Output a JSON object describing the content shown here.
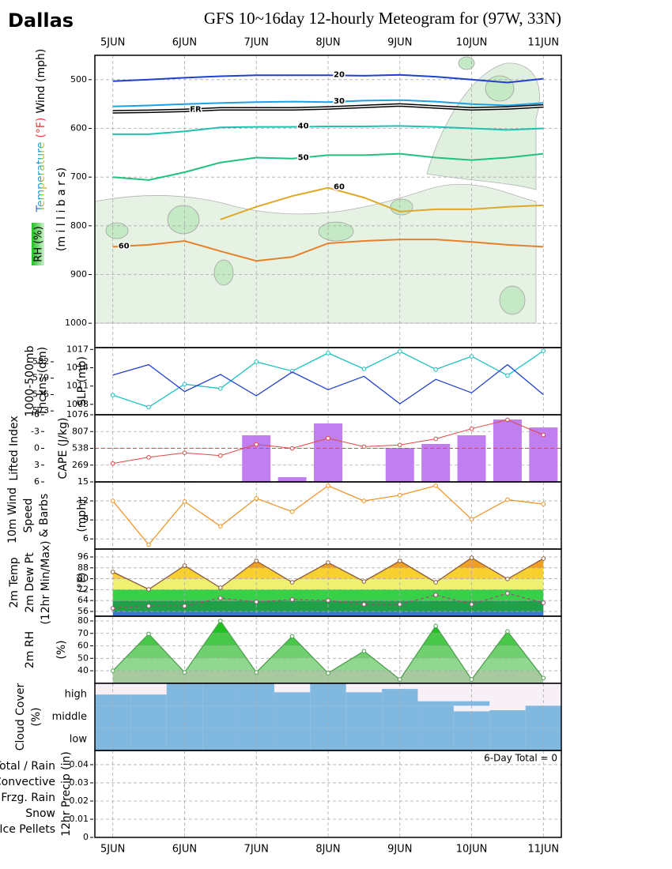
{
  "header": {
    "location": "Dallas",
    "title": "GFS 10~16day 12-hourly Meteogram for (97W, 33N)"
  },
  "x_axis": {
    "categories": [
      "5JUN",
      null,
      "6JUN",
      null,
      "7JUN",
      null,
      "8JUN",
      null,
      "9JUN",
      null,
      "10JUN",
      null,
      "11JUN"
    ],
    "xlim": [
      -0.5,
      12.5
    ]
  },
  "chart_data": [
    {
      "type": "contour",
      "temperature_label": "Temperature",
      "temperature_unit": "(°F)",
      "wind_label": "Wind (mph)",
      "ylabel": "(m i l l i b a r s)",
      "rh_label": "RH (%)",
      "ylim": [
        1050,
        450
      ],
      "yticks": [
        500,
        600,
        700,
        800,
        900,
        1000
      ],
      "grid": true,
      "series": [
        {
          "name": "20",
          "color": "#2040d0",
          "values": [
            503,
            500,
            496,
            493,
            491,
            491,
            491,
            492,
            490,
            494,
            500,
            506,
            498
          ]
        },
        {
          "name": "30",
          "color": "#1ea0e6",
          "values": [
            555,
            553,
            550,
            548,
            546,
            545,
            546,
            543,
            542,
            545,
            550,
            553,
            548
          ]
        },
        {
          "name": "FR",
          "color": "#000000",
          "style": "double",
          "values": [
            566,
            565,
            563,
            560,
            560,
            560,
            558,
            555,
            552,
            556,
            560,
            558,
            554
          ]
        },
        {
          "name": "40",
          "color": "#20c0b0",
          "values": [
            612,
            612,
            606,
            598,
            597,
            597,
            596,
            596,
            595,
            597,
            600,
            603,
            600
          ]
        },
        {
          "name": "50",
          "color": "#20c080",
          "values": [
            700,
            706,
            690,
            670,
            660,
            662,
            655,
            655,
            652,
            660,
            665,
            660,
            652
          ]
        },
        {
          "name": "60",
          "color": "#e0a828",
          "values": [
            null,
            null,
            null,
            787,
            761,
            739,
            722,
            742,
            771,
            766,
            766,
            761,
            758
          ]
        },
        {
          "name": "60",
          "color": "#e8802a",
          "values": [
            843,
            839,
            831,
            852,
            872,
            864,
            836,
            831,
            828,
            828,
            833,
            839,
            843
          ]
        }
      ]
    },
    {
      "type": "dual_line",
      "ylabel": [
        "1000-500mb",
        "Thckns (dm)"
      ],
      "y2label": "SLP (mb)",
      "ylim": [
        572.3,
        584.6
      ],
      "yticks": [
        573,
        576,
        579,
        582
      ],
      "y2lim": [
        1006.3,
        1017.3
      ],
      "y2ticks": [
        1008,
        1011,
        1014,
        1017
      ],
      "grid": false,
      "series": [
        {
          "color": "#20c0c0",
          "values": [
            575.9,
            573.7,
            577.9,
            577.1,
            582.0,
            580.3,
            583.6,
            580.7,
            583.9,
            580.6,
            583.0,
            579.5,
            584.0
          ]
        },
        {
          "color": "#2040d0",
          "axis": "y2",
          "values": [
            1012.8,
            1014.5,
            1010.1,
            1012.9,
            1009.4,
            1013.3,
            1010.4,
            1012.6,
            1008.1,
            1012.1,
            1009.9,
            1014.5,
            1009.6
          ]
        }
      ]
    },
    {
      "type": "bar_line",
      "ylabel": "Lifted Index",
      "y2label": "CAPE (J/kg)",
      "ylim": [
        6,
        -6
      ],
      "yticks": [
        -6,
        -3,
        0,
        3,
        6
      ],
      "y2lim": [
        0,
        1076
      ],
      "y2ticks": [
        269,
        538,
        807,
        1076
      ],
      "grid": true,
      "series": [
        {
          "color": "#e04848",
          "values": [
            2.7,
            1.6,
            0.8,
            1.3,
            -0.7,
            0,
            -1.8,
            -0.3,
            -0.6,
            -1.7,
            -3.5,
            -5.1,
            -2.4
          ]
        },
        {
          "color": "#c07ef0",
          "axis": "y2",
          "values": [
            0,
            0,
            10,
            0,
            747,
            76,
            937,
            0,
            544,
            608,
            747,
            1000,
            873
          ]
        }
      ]
    },
    {
      "type": "line",
      "ylabel": [
        "10m Wind",
        "Speed",
        "& Barbs"
      ],
      "ylabel_colors": [
        "#f09020",
        "#f09020",
        "#a06040"
      ],
      "unit": "(mph)",
      "ylim": [
        4.4,
        15
      ],
      "yticks": [
        6,
        9,
        12,
        15
      ],
      "grid": true,
      "series": [
        {
          "color": "#f09020",
          "values": [
            12.0,
            5.1,
            11.9,
            8.0,
            12.4,
            10.3,
            14.4,
            12.0,
            12.9,
            14.4,
            9.1,
            12.2,
            11.5
          ]
        }
      ]
    },
    {
      "type": "band_area",
      "ylabel": [
        "2m Temp",
        "2m Dew Pt",
        "(12hr Min/Max)"
      ],
      "ylabel_colors": [
        "#8b4a3c",
        "#8b4a3c",
        "#8b4a3c"
      ],
      "unit": "(°F)",
      "ylim": [
        52.5,
        101.8
      ],
      "yticks": [
        56,
        64,
        72,
        80,
        88,
        96
      ],
      "grid": true,
      "band_colors": [
        "#3a78d8",
        "#20a048",
        "#38d048",
        "#eef070",
        "#f8d030",
        "#f0a020",
        "#e06010"
      ],
      "series": [
        {
          "color": "#8b5a3c",
          "values": [
            85.0,
            72.2,
            89.6,
            73.4,
            93.1,
            77.4,
            91.9,
            78.0,
            93.1,
            77.4,
            95.4,
            79.8,
            94.8
          ]
        },
        {
          "color": "#a05070",
          "style": "dashed",
          "values": [
            58.3,
            60.0,
            60.0,
            65.8,
            63.0,
            64.7,
            64.1,
            61.2,
            61.2,
            68.1,
            61.2,
            69.3,
            62.3
          ]
        }
      ]
    },
    {
      "type": "band_area",
      "ylabel": [
        "2m RH"
      ],
      "ylabel_colors": [
        "#60c060"
      ],
      "unit": "(%)",
      "ylim": [
        29.9,
        83.8
      ],
      "yticks": [
        40,
        50,
        60,
        70,
        80
      ],
      "grid": true,
      "band_colors": [
        "#a8c8a0",
        "#90d890",
        "#70d070",
        "#48c848",
        "#20c020",
        "#10b010"
      ],
      "series": [
        {
          "color": "#50a050",
          "values": [
            40,
            69.6,
            38.7,
            80,
            38.7,
            67.7,
            38.1,
            55.8,
            33,
            76,
            33,
            71.6,
            34.2
          ]
        }
      ]
    },
    {
      "type": "cloud",
      "ylabel": [
        "Cloud Cover"
      ],
      "ylabel_colors": [
        "#4090d0"
      ],
      "unit": "(%)",
      "ylim": [
        0,
        100
      ],
      "color": "#80b8e0",
      "levels": [
        "high",
        "middle",
        "low"
      ],
      "series": [
        {
          "values": [
            50,
            50,
            100,
            100,
            100,
            60,
            100,
            60,
            75,
            20,
            20,
            0,
            0
          ]
        },
        {
          "values": [
            100,
            100,
            100,
            100,
            100,
            100,
            100,
            100,
            100,
            100,
            75,
            80,
            100
          ]
        },
        {
          "values": [
            100,
            100,
            100,
            100,
            100,
            100,
            100,
            100,
            100,
            100,
            100,
            100,
            100
          ]
        }
      ]
    },
    {
      "type": "bar",
      "ylabel": [
        "12hr Precip (in)"
      ],
      "ylabel_colors": [
        "#000000"
      ],
      "annotation": "6-Day Total = 0",
      "ylim": [
        0,
        0.0478
      ],
      "yticks": [
        0,
        0.01,
        0.02,
        0.03,
        0.04
      ],
      "grid": true,
      "series": [
        {
          "name": "Total / Rain",
          "color": "#40c040",
          "values": [
            0,
            0,
            0,
            0,
            0,
            0,
            0,
            0,
            0,
            0,
            0,
            0,
            0
          ]
        },
        {
          "name": "Convective",
          "color": "#e03030",
          "values": [
            0,
            0,
            0,
            0,
            0,
            0,
            0,
            0,
            0,
            0,
            0,
            0,
            0
          ]
        },
        {
          "name": "Frzg. Rain",
          "color": "#f08020",
          "values": [
            0,
            0,
            0,
            0,
            0,
            0,
            0,
            0,
            0,
            0,
            0,
            0,
            0
          ]
        },
        {
          "name": "Snow",
          "color": "#4040f0",
          "values": [
            0,
            0,
            0,
            0,
            0,
            0,
            0,
            0,
            0,
            0,
            0,
            0,
            0
          ]
        },
        {
          "name": "Ice Pellets",
          "color": "#20c0c0",
          "values": [
            0,
            0,
            0,
            0,
            0,
            0,
            0,
            0,
            0,
            0,
            0,
            0,
            0
          ]
        }
      ]
    }
  ]
}
